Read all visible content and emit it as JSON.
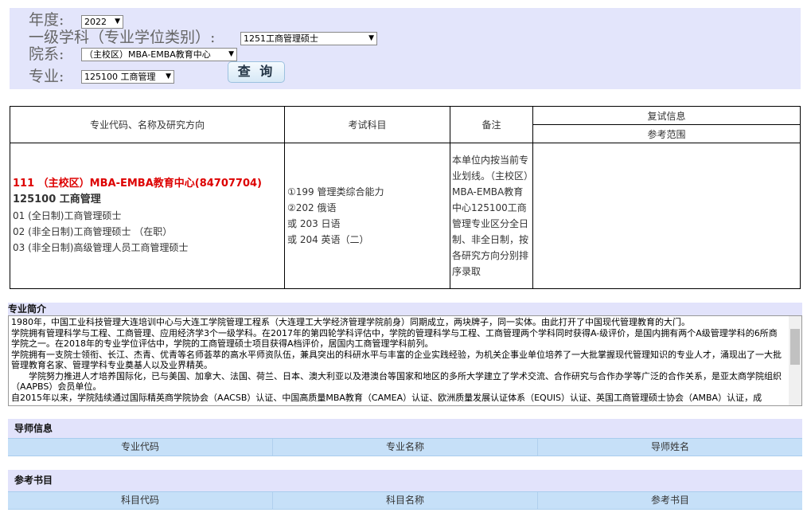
{
  "filters": {
    "year_label": "年度:",
    "year_value": "2022",
    "discipline_label": "一级学科（专业学位类别）:",
    "discipline_value": "1251工商管理硕士",
    "department_label": "院系:",
    "department_value": "（主校区）MBA-EMBA教育中心",
    "major_label": "专业:",
    "major_value": "125100 工商管理",
    "query_button": "查 询"
  },
  "table": {
    "headers": {
      "major": "专业代码、名称及研究方向",
      "exam": "考试科目",
      "remark": "备注",
      "retest": "复试信息",
      "reference": "参考范围"
    },
    "row": {
      "department": "111 （主校区）MBA-EMBA教育中心(84707704)",
      "major": "125100 工商管理",
      "directions": [
        "01 (全日制)工商管理硕士",
        "02 (非全日制)工商管理硕士 （在职）",
        "03 (非全日制)高级管理人员工商管理硕士"
      ],
      "exams": [
        "①199 管理类综合能力",
        "②202 俄语",
        "或 203 日语",
        "或 204 英语（二）"
      ],
      "remark": "本单位内按当前专业划线。（主校区）MBA-EMBA教育中心125100工商管理专业区分全日制、非全日制，按各研究方向分别排序录取"
    }
  },
  "intro": {
    "title": "专业简介",
    "paragraphs": [
      "1980年，中国工业科技管理大连培训中心与大连工学院管理工程系（大连理工大学经济管理学院前身）同期成立，两块牌子，同一实体。由此打开了中国现代管理教育的大门。",
      "学院拥有管理科学与工程、工商管理、应用经济学3个一级学科。在2017年的第四轮学科评估中，学院的管理科学与工程、工商管理两个学科同时获得A-级评价，是国内拥有两个A级管理学科的6所商学院之一。在2018年的专业学位评估中，学院的工商管理硕士项目获得A档评价，居国内工商管理学科前列。",
      "学院拥有一支院士领衔、长江、杰青、优青等名师荟萃的高水平师资队伍，兼具突出的科研水平与丰富的企业实践经验，为机关企事业单位培养了一大批掌握现代管理知识的专业人才，涌现出了一大批管理教育名家、管理学科专业奠基人以及业界精英。",
      "　　学院努力推进人才培养国际化，已与美国、加拿大、法国、荷兰、日本、澳大利亚以及港澳台等国家和地区的多所大学建立了学术交流、合作研究与合作办学等广泛的合作关系，是亚太商学院组织（AAPBS）会员单位。",
      "自2015年以来，学院陆续通过国际精英商学院协会（AACSB）认证、中国高质量MBA教育（CAMEA）认证、欧洲质量发展认证体系（EQUIS）认证、英国工商管理硕士协会（AMBA）认证，成"
    ]
  },
  "advisors": {
    "title": "导师信息",
    "columns": [
      "专业代码",
      "专业名称",
      "导师姓名"
    ]
  },
  "books": {
    "title": "参考书目",
    "columns": [
      "科目代码",
      "科目名称",
      "参考书目"
    ]
  }
}
